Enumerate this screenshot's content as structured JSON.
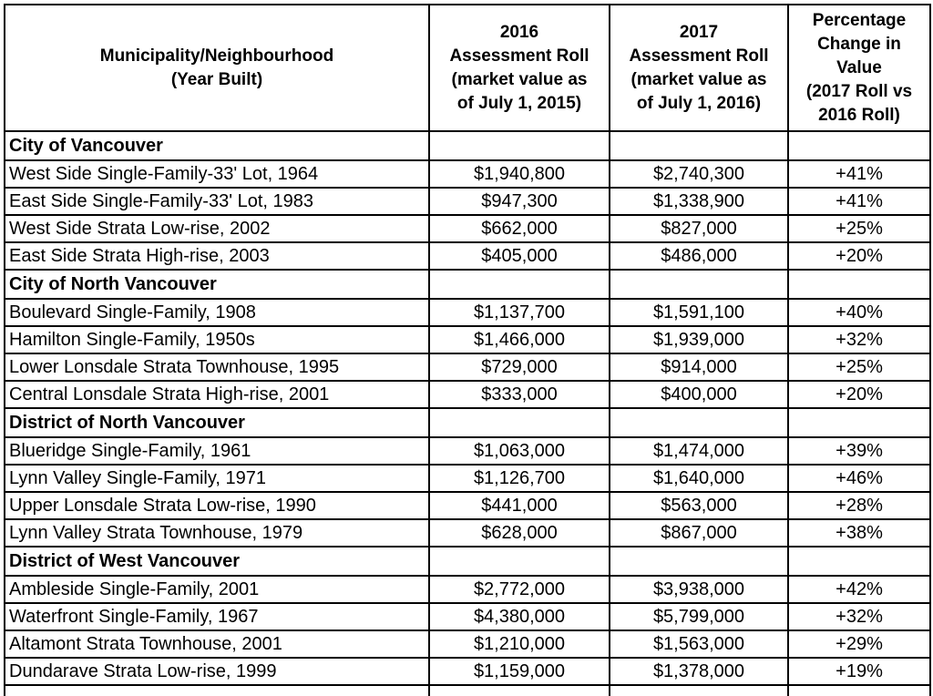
{
  "document": {
    "columns": [
      {
        "label": "Municipality/Neighbourhood\n(Year Built)"
      },
      {
        "label": "2016\nAssessment Roll\n(market value as\nof July 1, 2015)"
      },
      {
        "label": "2017\nAssessment Roll\n(market value as\nof July 1, 2016)"
      },
      {
        "label": "Percentage\nChange in\nValue\n(2017 Roll vs\n2016 Roll)"
      }
    ],
    "sections": [
      {
        "title": "City of Vancouver",
        "rows": [
          {
            "name": "West Side Single-Family-33' Lot, 1964",
            "roll_2016": "$1,940,800",
            "roll_2017": "$2,740,300",
            "change": "+41%"
          },
          {
            "name": "East Side Single-Family-33' Lot, 1983",
            "roll_2016": "$947,300",
            "roll_2017": "$1,338,900",
            "change": "+41%"
          },
          {
            "name": "West Side Strata Low-rise, 2002",
            "roll_2016": "$662,000",
            "roll_2017": "$827,000",
            "change": "+25%"
          },
          {
            "name": "East Side Strata High-rise, 2003",
            "roll_2016": "$405,000",
            "roll_2017": "$486,000",
            "change": "+20%"
          }
        ]
      },
      {
        "title": "City of North Vancouver",
        "rows": [
          {
            "name": "Boulevard Single-Family, 1908",
            "roll_2016": "$1,137,700",
            "roll_2017": "$1,591,100",
            "change": "+40%"
          },
          {
            "name": "Hamilton Single-Family, 1950s",
            "roll_2016": "$1,466,000",
            "roll_2017": "$1,939,000",
            "change": "+32%"
          },
          {
            "name": "Lower Lonsdale Strata Townhouse, 1995",
            "roll_2016": "$729,000",
            "roll_2017": "$914,000",
            "change": "+25%"
          },
          {
            "name": "Central Lonsdale Strata High-rise, 2001",
            "roll_2016": "$333,000",
            "roll_2017": "$400,000",
            "change": "+20%"
          }
        ]
      },
      {
        "title": "District of North Vancouver",
        "rows": [
          {
            "name": "Blueridge Single-Family, 1961",
            "roll_2016": "$1,063,000",
            "roll_2017": "$1,474,000",
            "change": "+39%"
          },
          {
            "name": "Lynn Valley Single-Family, 1971",
            "roll_2016": "$1,126,700",
            "roll_2017": "$1,640,000",
            "change": "+46%"
          },
          {
            "name": "Upper Lonsdale Strata Low-rise, 1990",
            "roll_2016": "$441,000",
            "roll_2017": "$563,000",
            "change": "+28%"
          },
          {
            "name": "Lynn Valley Strata Townhouse, 1979",
            "roll_2016": "$628,000",
            "roll_2017": "$867,000",
            "change": "+38%"
          }
        ]
      },
      {
        "title": "District of West Vancouver",
        "rows": [
          {
            "name": "Ambleside Single-Family, 2001",
            "roll_2016": "$2,772,000",
            "roll_2017": "$3,938,000",
            "change": "+42%"
          },
          {
            "name": "Waterfront Single-Family, 1967",
            "roll_2016": "$4,380,000",
            "roll_2017": "$5,799,000",
            "change": "+32%"
          },
          {
            "name": "Altamont Strata Townhouse, 2001",
            "roll_2016": "$1,210,000",
            "roll_2017": "$1,563,000",
            "change": "+29%"
          },
          {
            "name": "Dundarave Strata Low-rise, 1999",
            "roll_2016": "$1,159,000",
            "roll_2017": "$1,378,000",
            "change": "+19%"
          }
        ]
      }
    ],
    "colors": {
      "border": "#000000",
      "text": "#000000",
      "background": "#ffffff"
    }
  }
}
